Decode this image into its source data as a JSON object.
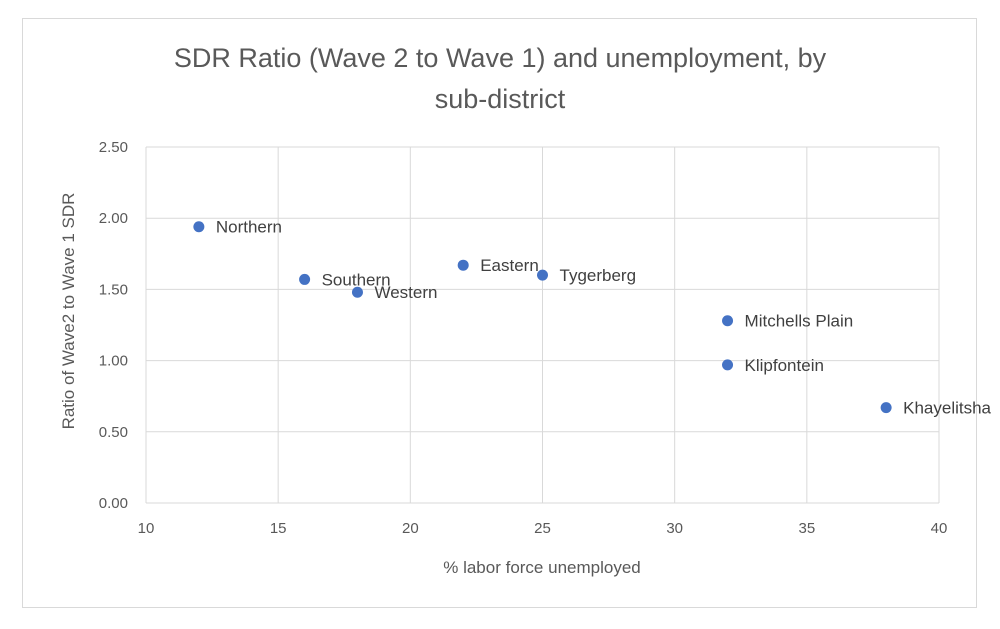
{
  "chart_data": {
    "type": "scatter",
    "title_lines": [
      "SDR Ratio (Wave 2 to Wave 1) and unemployment, by",
      "sub-district"
    ],
    "xlabel": "% labor force unemployed",
    "ylabel": "Ratio of Wave2 to Wave 1 SDR",
    "xlim": [
      10,
      40
    ],
    "ylim": [
      0,
      2.5
    ],
    "x_ticks": [
      "10",
      "15",
      "20",
      "25",
      "30",
      "35",
      "40"
    ],
    "y_ticks": [
      "0.00",
      "0.50",
      "1.00",
      "1.50",
      "2.00",
      "2.50"
    ],
    "grid": true,
    "marker_color": "#4472C4",
    "points": [
      {
        "label": "Northern",
        "x": 12,
        "y": 1.94
      },
      {
        "label": "Southern",
        "x": 16,
        "y": 1.57
      },
      {
        "label": "Western",
        "x": 18,
        "y": 1.48
      },
      {
        "label": "Eastern",
        "x": 22,
        "y": 1.67
      },
      {
        "label": "Tygerberg",
        "x": 25,
        "y": 1.6
      },
      {
        "label": "Mitchells Plain",
        "x": 32,
        "y": 1.28
      },
      {
        "label": "Klipfontein",
        "x": 32,
        "y": 0.97
      },
      {
        "label": "Khayelitsha",
        "x": 38,
        "y": 0.67
      }
    ]
  }
}
